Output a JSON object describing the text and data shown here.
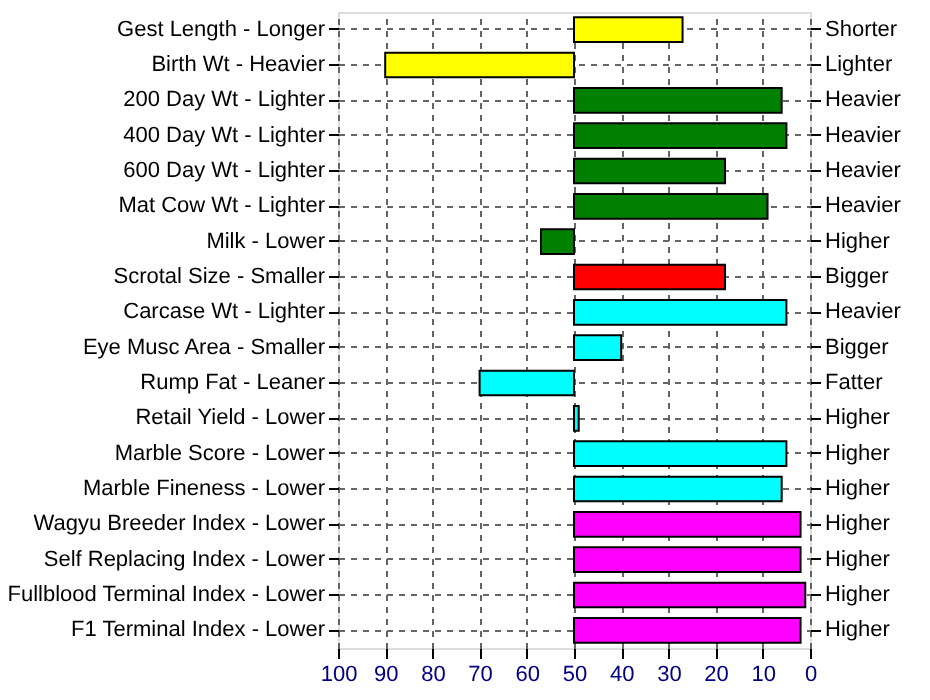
{
  "chart_data": {
    "type": "bar",
    "orientation": "horizontal",
    "categories": [
      "Gest Length - Longer",
      "Birth Wt - Heavier",
      "200 Day Wt - Lighter",
      "400 Day Wt - Lighter",
      "600 Day Wt - Lighter",
      "Mat Cow Wt - Lighter",
      "Milk - Lower",
      "Scrotal Size - Smaller",
      "Carcase Wt - Lighter",
      "Eye Musc Area - Smaller",
      "Rump Fat - Leaner",
      "Retail Yield - Lower",
      "Marble Score - Lower",
      "Marble Fineness - Lower",
      "Wagyu Breeder Index - Lower",
      "Self Replacing Index - Lower",
      "Fullblood Terminal Index - Lower",
      "F1 Terminal Index - Lower"
    ],
    "y2_categories": [
      "Shorter",
      "Lighter",
      "Heavier",
      "Heavier",
      "Heavier",
      "Heavier",
      "Higher",
      "Bigger",
      "Heavier",
      "Bigger",
      "Fatter",
      "Higher",
      "Higher",
      "Higher",
      "Higher",
      "Higher",
      "Higher",
      "Higher"
    ],
    "base": [
      50,
      50,
      50,
      50,
      50,
      50,
      50,
      50,
      50,
      50,
      50,
      50,
      50,
      50,
      50,
      50,
      50,
      50
    ],
    "values": [
      -23,
      40,
      -44,
      -45,
      -32,
      -41,
      7,
      -32,
      -45,
      -10,
      20,
      -1,
      -45,
      -44,
      -48,
      -48,
      -49,
      -48
    ],
    "colors": [
      "#ffff00",
      "#ffff00",
      "#008000",
      "#008000",
      "#008000",
      "#008000",
      "#008000",
      "#ff0000",
      "#00ffff",
      "#00ffff",
      "#00ffff",
      "#00ffff",
      "#00ffff",
      "#00ffff",
      "#ff00ff",
      "#ff00ff",
      "#ff00ff",
      "#ff00ff"
    ],
    "xlim": [
      100,
      0
    ],
    "xticks": [
      100,
      90,
      80,
      70,
      60,
      50,
      40,
      30,
      20,
      10,
      0
    ],
    "grid": true
  }
}
